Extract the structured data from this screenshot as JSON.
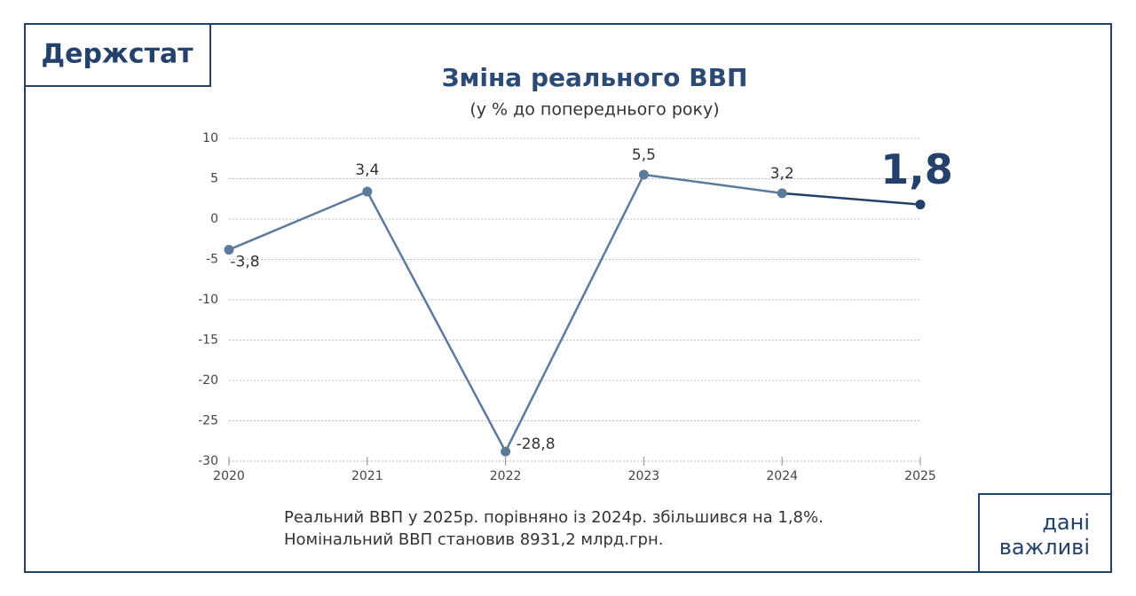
{
  "chart_data": {
    "type": "line",
    "brand": "Держстат",
    "title": "Зміна реального ВВП",
    "subtitle": "(у % до попереднього року)",
    "x": [
      2020,
      2021,
      2022,
      2023,
      2024,
      2025
    ],
    "xlim": [
      2020,
      2025
    ],
    "xticks": [
      2020,
      2021,
      2022,
      2023,
      2024,
      2025
    ],
    "ylim": [
      -30,
      10
    ],
    "yticks": [
      -30,
      -25,
      -20,
      -15,
      -10,
      -5,
      0,
      5,
      10
    ],
    "grid": true,
    "series": [
      {
        "name": "Зміна реального ВВП",
        "color": "#5b7a9c",
        "highlight_color": "#24416b",
        "values": [
          -3.8,
          3.4,
          -28.8,
          5.5,
          3.2,
          1.8
        ],
        "value_labels": [
          "-3,8",
          "3,4",
          "-28,8",
          "5,5",
          "3,2",
          "1,8"
        ]
      }
    ],
    "notes": [
      "Реальний ВВП у 2025р. порівняно із 2024р. збільшився на 1,8%.",
      "Номінальний ВВП становив 8931,2 млрд.грн."
    ],
    "corner": [
      "дані",
      "важливі"
    ]
  }
}
